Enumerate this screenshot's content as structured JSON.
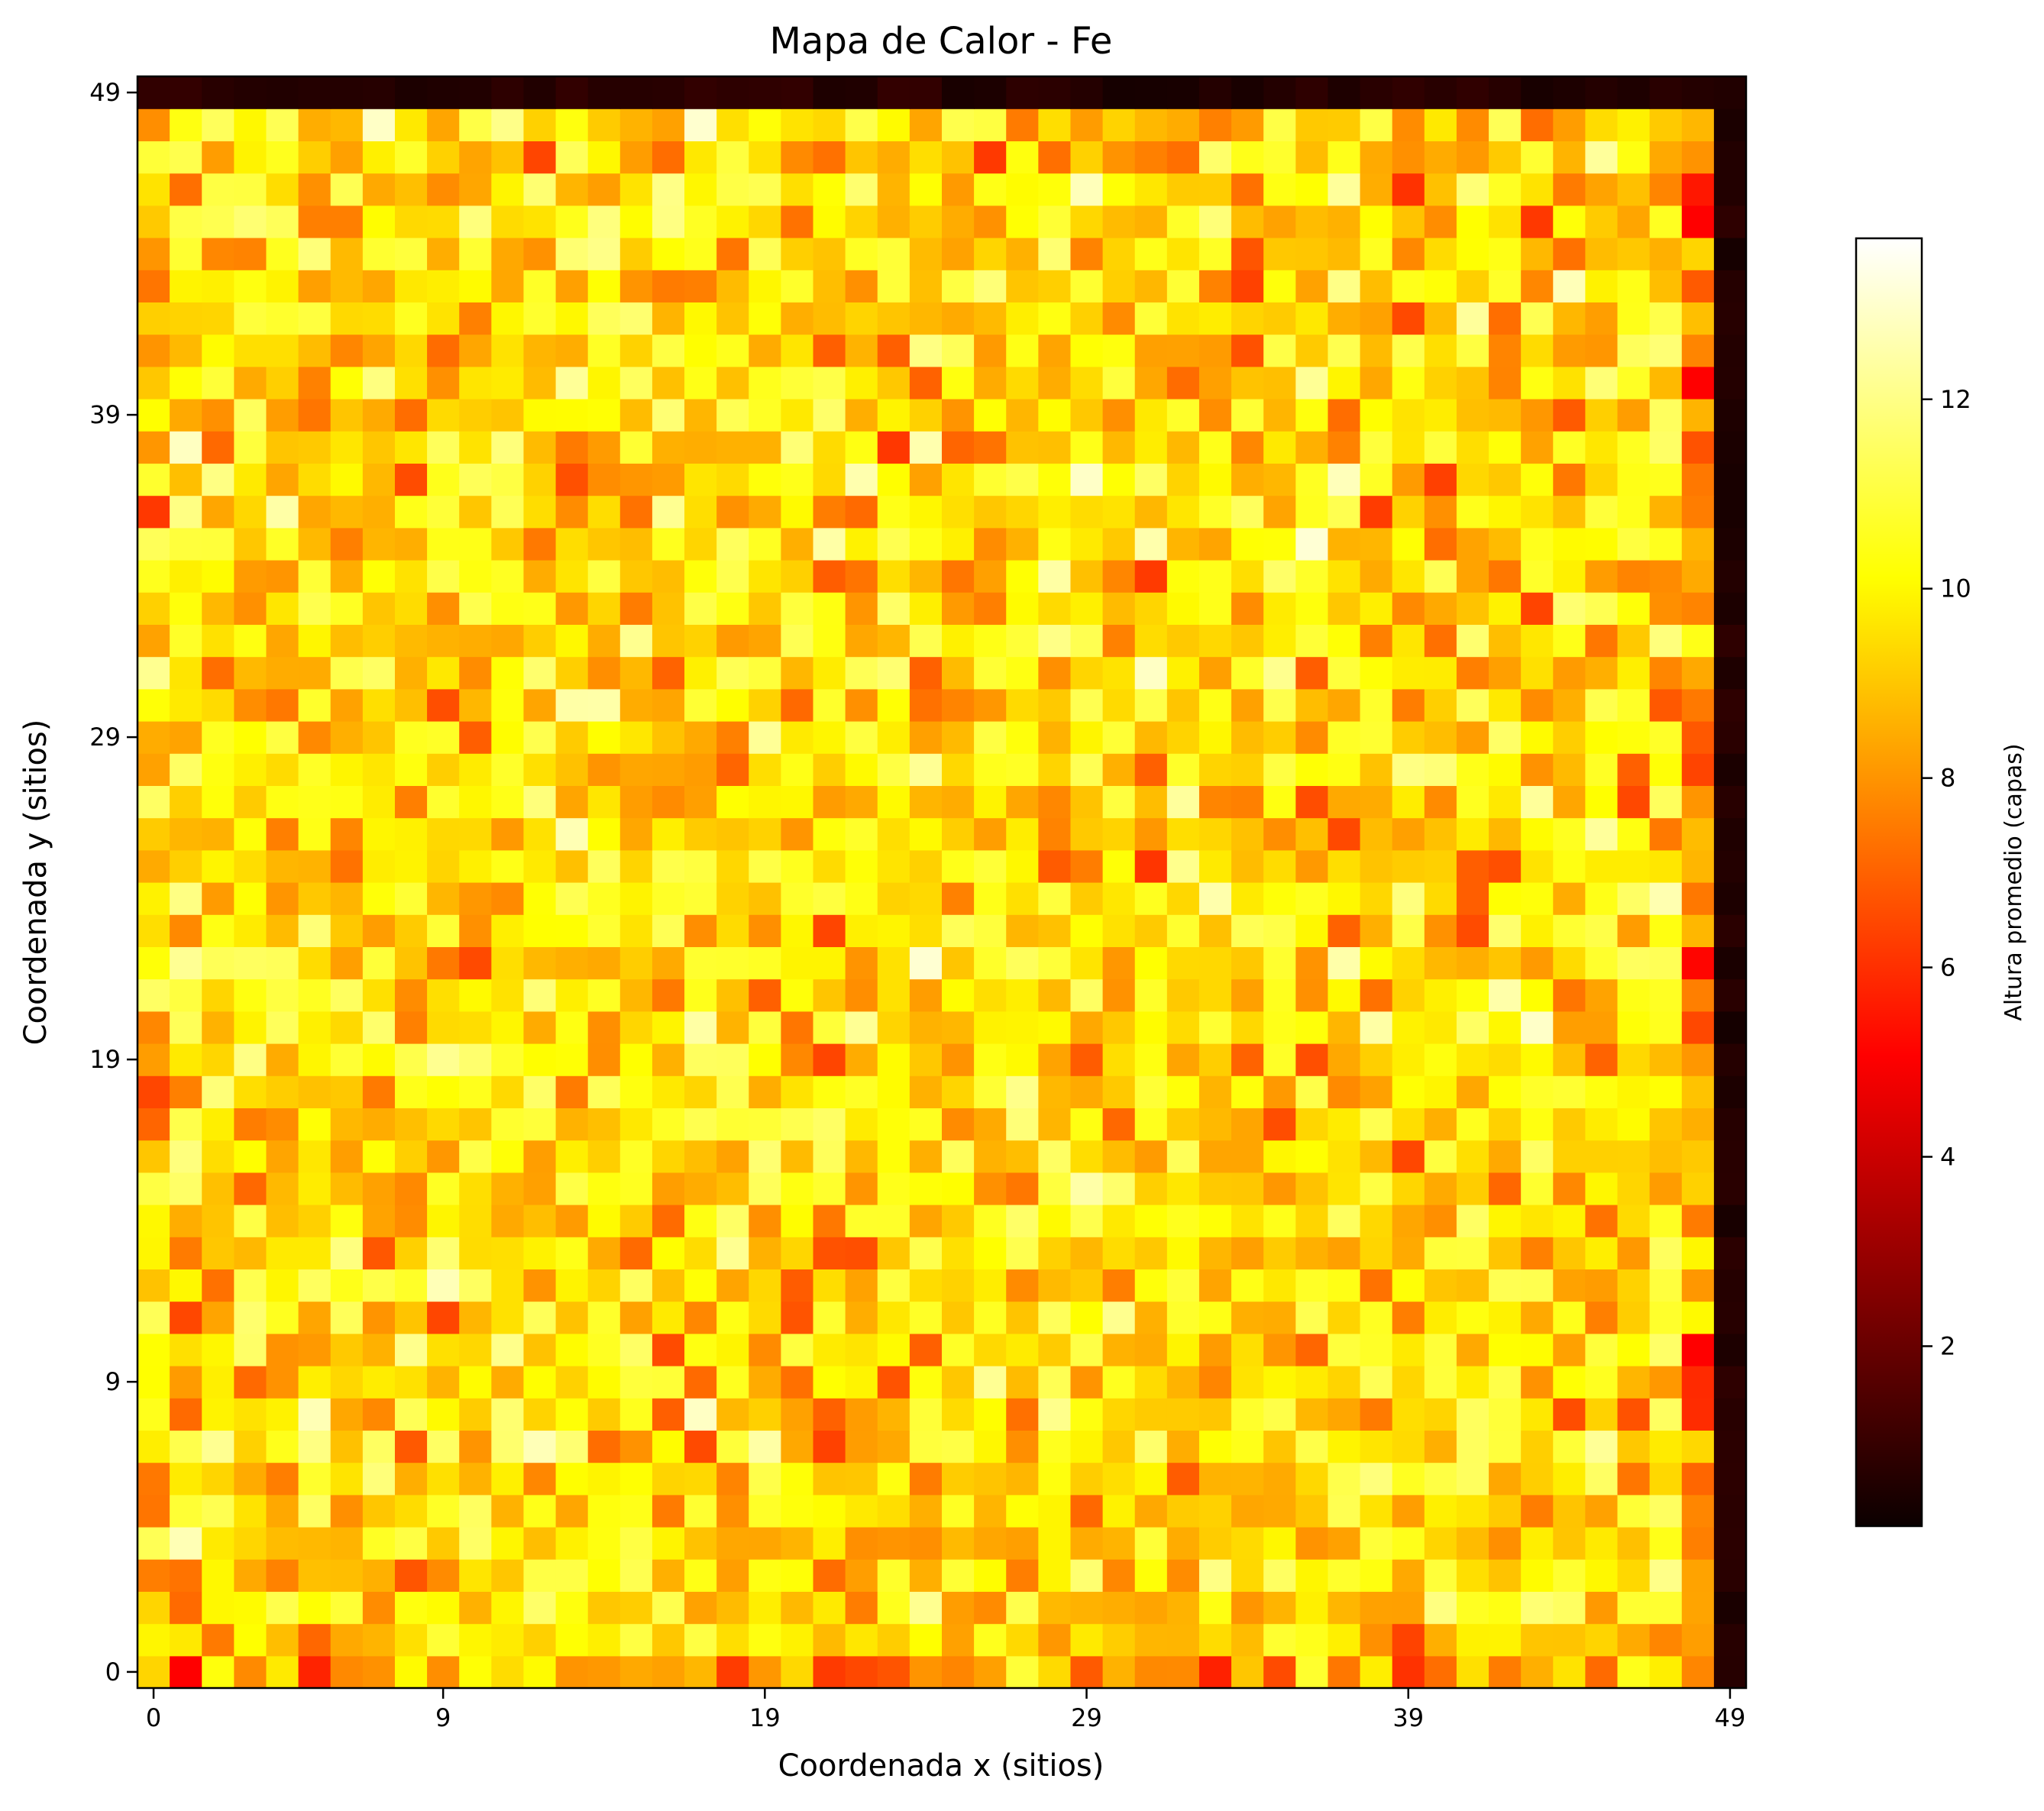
{
  "chart_data": {
    "type": "heatmap",
    "title": "Mapa de Calor - Fe",
    "xlabel": "Coordenada x (sitios)",
    "ylabel": "Coordenada y (sitios)",
    "colorbar_label": "Altura promedio (capas)",
    "colormap": "hot",
    "grid_size": [
      50,
      50
    ],
    "x_range": [
      0,
      49
    ],
    "y_range": [
      0,
      49
    ],
    "x_ticks": [
      0,
      9,
      19,
      29,
      39,
      49
    ],
    "y_ticks": [
      0,
      9,
      19,
      29,
      39,
      49
    ],
    "x_tick_labels": [
      "0",
      "9",
      "19",
      "29",
      "39",
      "49"
    ],
    "y_tick_labels": [
      "0",
      "9",
      "19",
      "29",
      "39",
      "49"
    ],
    "colorbar_range": [
      0.1,
      13.7
    ],
    "colorbar_ticks": [
      2,
      4,
      6,
      8,
      10,
      12
    ],
    "colorbar_tick_labels": [
      "2",
      "4",
      "6",
      "8",
      "10",
      "12"
    ],
    "grid": false,
    "summary_values": {
      "typical_interior_height": 9.5,
      "interior_range": [
        5.0,
        13.7
      ],
      "top_row_y49_height": 0.6,
      "right_column_x49_height": 0.5
    },
    "values_note": "Interior cells (x 0-48, y 0-48) vary between ~5 and ~13.7; row y=49 and column x=49 are ~0.3-1.0."
  }
}
